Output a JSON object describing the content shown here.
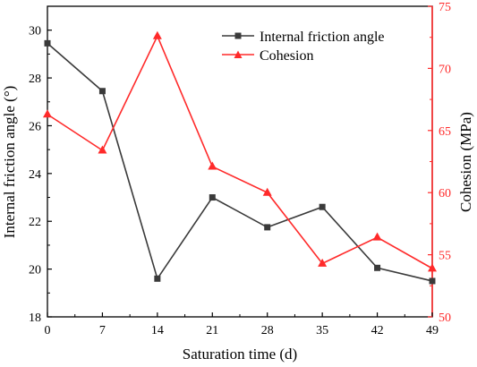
{
  "chart_data": {
    "type": "line",
    "xlabel": "Saturation time (d)",
    "ylabel_left": "Internal friction angle (°)",
    "ylabel_right": "Cohesion (MPa)",
    "x": [
      0,
      7,
      14,
      21,
      28,
      35,
      42,
      49
    ],
    "xlim": [
      0,
      49
    ],
    "ylim_left": [
      18,
      31
    ],
    "ylim_right": [
      50,
      75
    ],
    "x_ticks": [
      "0",
      "7",
      "14",
      "21",
      "28",
      "35",
      "42",
      "49"
    ],
    "y_ticks_left": [
      "18",
      "20",
      "22",
      "24",
      "26",
      "28",
      "30"
    ],
    "y_ticks_right": [
      "50",
      "55",
      "60",
      "65",
      "70",
      "75"
    ],
    "legend_position": "top-right",
    "series": [
      {
        "name": "Internal friction angle",
        "axis": "left",
        "marker": "square",
        "color": "#3a3a3a",
        "values": [
          29.45,
          27.45,
          19.6,
          23.0,
          21.75,
          22.6,
          20.05,
          19.5
        ]
      },
      {
        "name": "Cohesion",
        "axis": "right",
        "marker": "triangle",
        "color": "#ff2a2a",
        "values": [
          66.3,
          63.4,
          72.6,
          62.1,
          60.0,
          54.3,
          56.4,
          53.9
        ]
      }
    ]
  }
}
